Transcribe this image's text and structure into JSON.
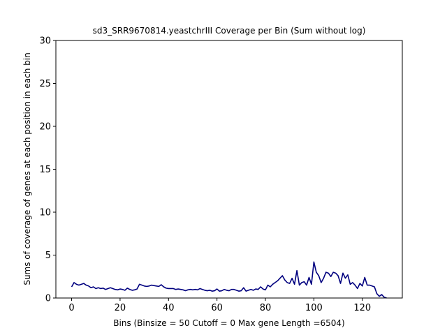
{
  "chart_data": {
    "type": "line",
    "title": "sd3_SRR9670814.yeastchrIII Coverage per Bin (Sum without log)",
    "xlabel": "Bins  (Binsize = 50 Cutoff = 0 Max gene Length =6504)",
    "ylabel": "Sums of coverage of genes at each position in each bin",
    "xlim": [
      -6.5,
      136.5
    ],
    "ylim": [
      0,
      30
    ],
    "xticks": [
      0,
      20,
      40,
      60,
      80,
      100,
      120
    ],
    "yticks": [
      0,
      5,
      10,
      15,
      20,
      25,
      30
    ],
    "grid": false,
    "series_color": "#00007f",
    "x": [
      0,
      1,
      2,
      3,
      4,
      5,
      6,
      7,
      8,
      9,
      10,
      11,
      12,
      13,
      14,
      15,
      16,
      17,
      18,
      19,
      20,
      21,
      22,
      23,
      24,
      25,
      26,
      27,
      28,
      29,
      30,
      31,
      32,
      33,
      34,
      35,
      36,
      37,
      38,
      39,
      40,
      41,
      42,
      43,
      44,
      45,
      46,
      47,
      48,
      49,
      50,
      51,
      52,
      53,
      54,
      55,
      56,
      57,
      58,
      59,
      60,
      61,
      62,
      63,
      64,
      65,
      66,
      67,
      68,
      69,
      70,
      71,
      72,
      73,
      74,
      75,
      76,
      77,
      78,
      79,
      80,
      81,
      82,
      83,
      84,
      85,
      86,
      87,
      88,
      89,
      90,
      91,
      92,
      93,
      94,
      95,
      96,
      97,
      98,
      99,
      100,
      101,
      102,
      103,
      104,
      105,
      106,
      107,
      108,
      109,
      110,
      111,
      112,
      113,
      114,
      115,
      116,
      117,
      118,
      119,
      120,
      121,
      122,
      123,
      124,
      125,
      126,
      127,
      128,
      129,
      130
    ],
    "y": [
      1.3,
      1.8,
      1.6,
      1.5,
      1.6,
      1.7,
      1.5,
      1.4,
      1.2,
      1.3,
      1.1,
      1.2,
      1.1,
      1.15,
      1.0,
      1.1,
      1.2,
      1.1,
      1.0,
      0.95,
      1.05,
      1.0,
      0.9,
      1.15,
      1.0,
      0.9,
      0.95,
      1.05,
      1.6,
      1.5,
      1.4,
      1.35,
      1.4,
      1.5,
      1.45,
      1.4,
      1.35,
      1.55,
      1.3,
      1.15,
      1.1,
      1.1,
      1.1,
      1.0,
      1.05,
      1.0,
      0.95,
      0.85,
      0.95,
      1.0,
      0.95,
      1.0,
      0.95,
      1.1,
      1.0,
      0.9,
      0.85,
      0.9,
      0.8,
      0.85,
      1.05,
      0.8,
      0.85,
      1.0,
      0.9,
      0.85,
      1.0,
      1.0,
      0.9,
      0.8,
      0.85,
      1.2,
      0.8,
      0.9,
      1.0,
      0.9,
      1.05,
      1.0,
      1.3,
      1.05,
      0.95,
      1.5,
      1.3,
      1.6,
      1.8,
      2.0,
      2.3,
      2.6,
      2.1,
      1.8,
      1.7,
      2.3,
      1.6,
      3.2,
      1.5,
      1.8,
      1.9,
      1.5,
      2.4,
      1.6,
      4.2,
      3.0,
      2.6,
      1.8,
      2.3,
      3.0,
      2.9,
      2.5,
      3.0,
      2.9,
      2.6,
      1.7,
      2.9,
      2.3,
      2.7,
      1.6,
      1.8,
      1.5,
      1.1,
      1.7,
      1.4,
      2.4,
      1.5,
      1.5,
      1.4,
      1.3,
      0.5,
      0.2,
      0.4,
      0.1,
      0.0
    ]
  }
}
